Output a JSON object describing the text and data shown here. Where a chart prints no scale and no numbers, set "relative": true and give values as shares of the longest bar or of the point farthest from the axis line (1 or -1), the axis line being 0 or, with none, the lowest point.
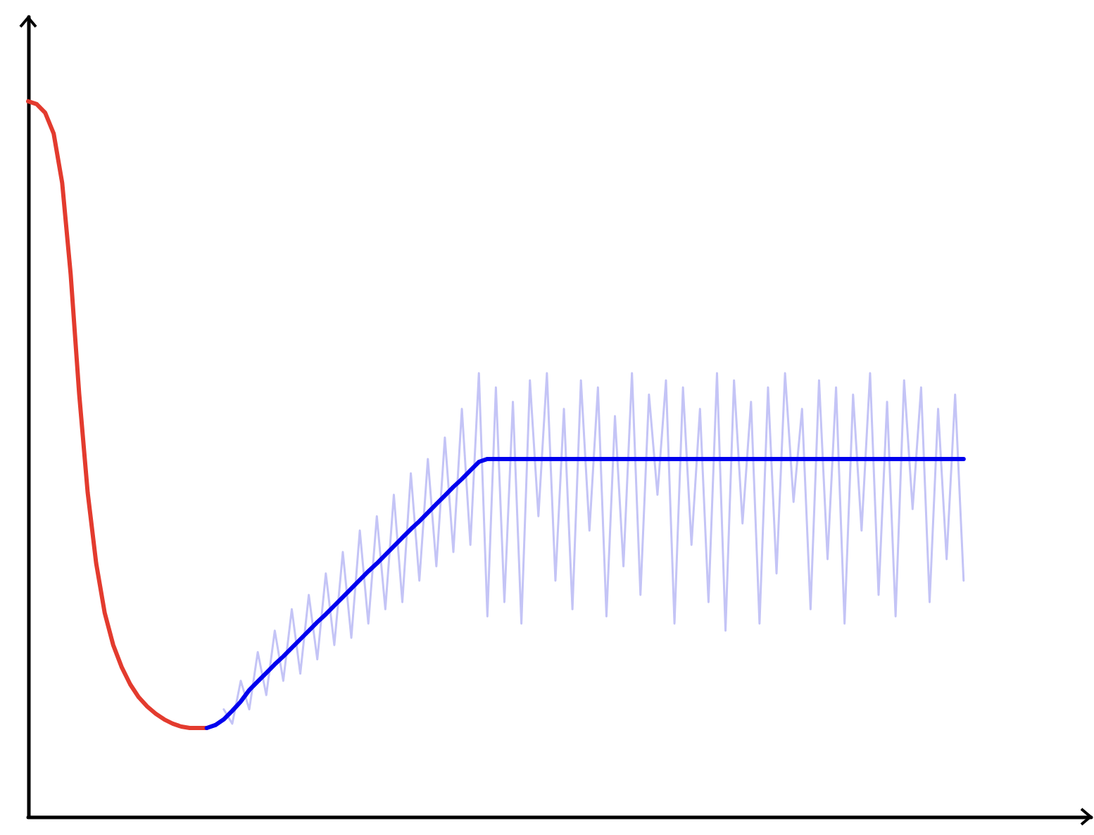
{
  "chart_data": {
    "type": "line",
    "relative": true,
    "categories": [
      null,
      null,
      null,
      null,
      null,
      null,
      null,
      null,
      null,
      null,
      null,
      null,
      null,
      null,
      null,
      null,
      null,
      null,
      null,
      null,
      null,
      null,
      null,
      null,
      null,
      null,
      null,
      null,
      null,
      null,
      null,
      null,
      null,
      null,
      null,
      null,
      null,
      null,
      null,
      null,
      null,
      null,
      null,
      null,
      null,
      null,
      null,
      null,
      null,
      null,
      null,
      null,
      null,
      null,
      null,
      null,
      null,
      null,
      null,
      null,
      null,
      null,
      null,
      null,
      null,
      null,
      null,
      null,
      null,
      null,
      null,
      null,
      null,
      null,
      null,
      null,
      null,
      null,
      null,
      null,
      null,
      null,
      null,
      null,
      null,
      null,
      null,
      null,
      null,
      null,
      null,
      null,
      null,
      null,
      null,
      null,
      null,
      null,
      null,
      null,
      null,
      null,
      null,
      null,
      null,
      null,
      null,
      null,
      null,
      null,
      null,
      null,
      null,
      null,
      null,
      null,
      null,
      null,
      null,
      null,
      null,
      null,
      null,
      null,
      null,
      null
    ],
    "series": [
      {
        "color": "#c4c4f6",
        "values": [
          null,
          null,
          null,
          null,
          null,
          null,
          null,
          null,
          null,
          null,
          null,
          null,
          null,
          null,
          null,
          null,
          null,
          null,
          null,
          null,
          null,
          null,
          null,
          0.15,
          0.13,
          0.19,
          0.15,
          0.23,
          0.17,
          0.26,
          0.19,
          0.29,
          0.2,
          0.31,
          0.22,
          0.34,
          0.24,
          0.37,
          0.25,
          0.4,
          0.27,
          0.42,
          0.29,
          0.45,
          0.3,
          0.48,
          0.33,
          0.5,
          0.35,
          0.53,
          0.37,
          0.57,
          0.38,
          0.62,
          0.28,
          0.6,
          0.3,
          0.58,
          0.27,
          0.61,
          0.42,
          0.62,
          0.33,
          0.57,
          0.29,
          0.61,
          0.4,
          0.6,
          0.28,
          0.56,
          0.35,
          0.62,
          0.31,
          0.59,
          0.45,
          0.61,
          0.27,
          0.6,
          0.38,
          0.57,
          0.3,
          0.62,
          0.26,
          0.61,
          0.41,
          0.58,
          0.27,
          0.6,
          0.34,
          0.62,
          0.44,
          0.57,
          0.29,
          0.61,
          0.36,
          0.6,
          0.27,
          0.59,
          0.4,
          0.62,
          0.31,
          0.58,
          0.28,
          0.61,
          0.43,
          0.6,
          0.3,
          0.57,
          0.36,
          0.59,
          0.33,
          null,
          null,
          null,
          null,
          null,
          null,
          null,
          null,
          null,
          null,
          null,
          null,
          null,
          null,
          null
        ]
      },
      {
        "color": "#e33b2e",
        "values": [
          1.0,
          0.996,
          0.984,
          0.955,
          0.886,
          0.758,
          0.591,
          0.453,
          0.354,
          0.285,
          0.24,
          0.209,
          0.185,
          0.167,
          0.154,
          0.144,
          0.136,
          0.13,
          0.126,
          0.124,
          0.124,
          0.124,
          null,
          null,
          null,
          null,
          null,
          null,
          null,
          null,
          null,
          null,
          null,
          null,
          null,
          null,
          null,
          null,
          null,
          null,
          null,
          null,
          null,
          null,
          null,
          null,
          null,
          null,
          null,
          null,
          null,
          null,
          null,
          null,
          null,
          null,
          null,
          null,
          null,
          null,
          null,
          null,
          null,
          null,
          null,
          null,
          null,
          null,
          null,
          null,
          null,
          null,
          null,
          null,
          null,
          null,
          null,
          null,
          null,
          null,
          null,
          null,
          null,
          null,
          null,
          null,
          null,
          null,
          null,
          null,
          null,
          null,
          null,
          null,
          null,
          null,
          null,
          null,
          null,
          null,
          null,
          null,
          null,
          null,
          null,
          null,
          null,
          null,
          null,
          null,
          null,
          null,
          null,
          null,
          null,
          null,
          null,
          null,
          null,
          null,
          null,
          null,
          null,
          null,
          null,
          null
        ]
      },
      {
        "color": "#0000ee",
        "values": [
          null,
          null,
          null,
          null,
          null,
          null,
          null,
          null,
          null,
          null,
          null,
          null,
          null,
          null,
          null,
          null,
          null,
          null,
          null,
          null,
          null,
          0.124,
          0.128,
          0.136,
          0.148,
          0.161,
          0.177,
          0.189,
          0.201,
          0.213,
          0.224,
          0.236,
          0.248,
          0.26,
          0.272,
          0.283,
          0.295,
          0.307,
          0.319,
          0.331,
          0.343,
          0.354,
          0.366,
          0.378,
          0.39,
          0.402,
          0.413,
          0.425,
          0.437,
          0.449,
          0.461,
          0.472,
          0.484,
          0.496,
          0.5,
          0.5,
          0.5,
          0.5,
          0.5,
          0.5,
          0.5,
          0.5,
          0.5,
          0.5,
          0.5,
          0.5,
          0.5,
          0.5,
          0.5,
          0.5,
          0.5,
          0.5,
          0.5,
          0.5,
          0.5,
          0.5,
          0.5,
          0.5,
          0.5,
          0.5,
          0.5,
          0.5,
          0.5,
          0.5,
          0.5,
          0.5,
          0.5,
          0.5,
          0.5,
          0.5,
          0.5,
          0.5,
          0.5,
          0.5,
          0.5,
          0.5,
          0.5,
          0.5,
          0.5,
          0.5,
          0.5,
          0.5,
          0.5,
          0.5,
          0.5,
          0.5,
          0.5,
          0.5,
          0.5,
          0.5,
          0.5,
          null,
          null,
          null,
          null,
          null,
          null,
          null,
          null,
          null,
          null,
          null,
          null,
          null,
          null,
          null
        ]
      }
    ]
  }
}
